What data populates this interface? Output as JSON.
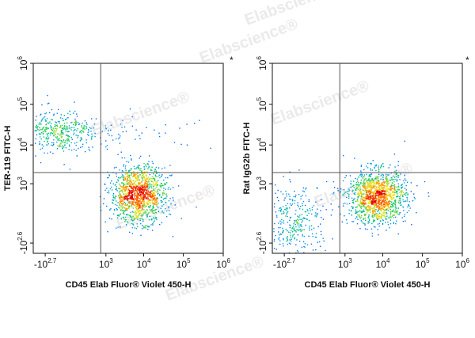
{
  "watermark": "Elabscience®",
  "chart_data": [
    {
      "type": "scatter",
      "subtype": "flow-cytometry-density-dot-plot",
      "title": "",
      "xlabel": "CD45 Elab Fluor® Violet 450-H",
      "ylabel": "TER-119 FITC-H",
      "corner_mark": "*",
      "x_scale": "biexponential",
      "y_scale": "biexponential",
      "x_ticks": [
        {
          "base": "-10",
          "exp": "2.7"
        },
        {
          "base": "10",
          "exp": "3"
        },
        {
          "base": "10",
          "exp": "4"
        },
        {
          "base": "10",
          "exp": "5"
        },
        {
          "base": "10",
          "exp": "6"
        }
      ],
      "y_ticks": [
        {
          "base": "-10",
          "exp": "2.6"
        },
        {
          "base": "10",
          "exp": "3"
        },
        {
          "base": "10",
          "exp": "4"
        },
        {
          "base": "10",
          "exp": "5"
        },
        {
          "base": "10",
          "exp": "6"
        }
      ],
      "x_tick_values": [
        -500,
        1000,
        10000,
        100000,
        1000000
      ],
      "y_tick_values": [
        -400,
        1000,
        10000,
        100000,
        1000000
      ],
      "gate": {
        "x": 700,
        "y": 2000
      },
      "populations": [
        {
          "x": -200,
          "y": 20000,
          "count": 450,
          "spread_x": 0.55,
          "spread_y": 0.28
        },
        {
          "x": 7000,
          "y": 500,
          "count": 1300,
          "spread_x": 0.34,
          "spread_y": 0.34
        },
        {
          "x": 6000,
          "y": 20000,
          "count": 50,
          "spread_x": 1.0,
          "spread_y": 0.18
        }
      ]
    },
    {
      "type": "scatter",
      "subtype": "flow-cytometry-density-dot-plot",
      "title": "",
      "xlabel": "CD45 Elab Fluor® Violet 450-H",
      "ylabel": "Rat IgG2b FITC-H",
      "corner_mark": "*",
      "x_scale": "biexponential",
      "y_scale": "biexponential",
      "x_ticks": [
        {
          "base": "-10",
          "exp": "2.7"
        },
        {
          "base": "10",
          "exp": "3"
        },
        {
          "base": "10",
          "exp": "4"
        },
        {
          "base": "10",
          "exp": "5"
        },
        {
          "base": "10",
          "exp": "6"
        }
      ],
      "y_ticks": [
        {
          "base": "-10",
          "exp": "2.6"
        },
        {
          "base": "10",
          "exp": "3"
        },
        {
          "base": "10",
          "exp": "4"
        },
        {
          "base": "10",
          "exp": "5"
        },
        {
          "base": "10",
          "exp": "6"
        }
      ],
      "x_tick_values": [
        -500,
        1000,
        10000,
        100000,
        1000000
      ],
      "y_tick_values": [
        -400,
        1000,
        10000,
        100000,
        1000000
      ],
      "gate": {
        "x": 700,
        "y": 2000
      },
      "populations": [
        {
          "x": -250,
          "y": 0,
          "count": 350,
          "spread_x": 0.45,
          "spread_y": 0.45
        },
        {
          "x": 7000,
          "y": 400,
          "count": 1300,
          "spread_x": 0.36,
          "spread_y": 0.32
        }
      ]
    }
  ]
}
